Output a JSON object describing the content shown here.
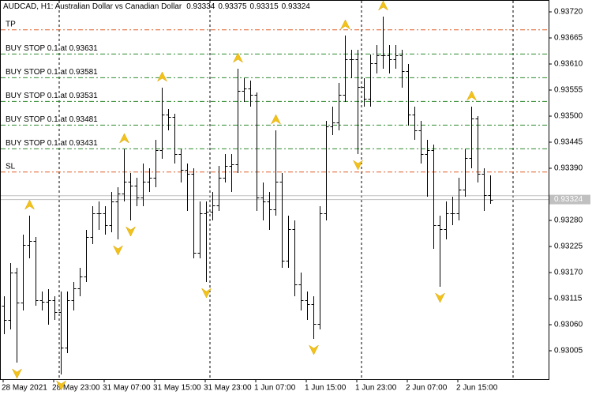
{
  "chart_data": {
    "type": "ohlc",
    "symbol": "AUDCAD, H1:  Australian Dollar vs Canadian Dollar",
    "bar_color": "#000000",
    "fractal_color": "#f2c21b",
    "ylim": [
      0.92945,
      0.93745
    ],
    "yticks": [
      {
        "value": 0.9372,
        "label": "0.93720"
      },
      0.93665,
      {
        "value": 0.9361,
        "label": "0.93610"
      },
      0.93555,
      {
        "value": 0.935,
        "label": "0.93500"
      },
      0.93445,
      {
        "value": 0.9339,
        "label": "0.93390"
      },
      {
        "value": 0.9328,
        "label": "0.93280"
      },
      0.93225,
      {
        "value": 0.9317,
        "label": "0.93170"
      },
      0.93115,
      {
        "value": 0.9306,
        "label": "0.93060"
      },
      0.93005
    ],
    "categories": [
      "28 May 2021",
      null,
      null,
      null,
      null,
      null,
      null,
      null,
      "28 May 23:00",
      null,
      null,
      null,
      null,
      null,
      null,
      null,
      "31 May 07:00",
      null,
      null,
      null,
      null,
      null,
      null,
      null,
      "31 May 15:00",
      null,
      null,
      null,
      null,
      null,
      null,
      null,
      "31 May 23:00",
      null,
      null,
      null,
      null,
      null,
      null,
      null,
      "1 Jun 07:00",
      null,
      null,
      null,
      null,
      null,
      null,
      null,
      "1 Jun 15:00",
      null,
      null,
      null,
      null,
      null,
      null,
      null,
      "1 Jun 23:00",
      null,
      null,
      null,
      null,
      null,
      null,
      null,
      "2 Jun 07:00",
      null,
      null,
      null,
      null,
      null,
      null,
      null,
      "2 Jun 15:00",
      null,
      null,
      null,
      null,
      null
    ],
    "open": [
      0.931,
      0.9307,
      0.9317,
      0.93107,
      0.93228,
      0.93237,
      0.93112,
      0.93108,
      0.93112,
      0.93087,
      0.93012,
      0.93112,
      0.93137,
      0.93162,
      0.93245,
      0.93295,
      0.93295,
      0.9327,
      0.9332,
      0.93337,
      0.93362,
      0.93353,
      0.93328,
      0.93362,
      0.9337,
      0.93428,
      0.93503,
      0.93498,
      0.9342,
      0.93387,
      0.93378,
      0.93212,
      0.93295,
      0.93298,
      0.93312,
      0.9337,
      0.93395,
      0.93398,
      0.93553,
      0.93558,
      0.93545,
      0.93328,
      0.9332,
      0.93303,
      0.93362,
      0.93195,
      0.93262,
      0.93145,
      0.93112,
      0.93103,
      0.93062,
      0.93295,
      0.93478,
      0.93487,
      0.93545,
      0.9362,
      0.9362,
      0.93562,
      0.93537,
      0.93612,
      0.93628,
      0.93628,
      0.9362,
      0.93628,
      0.93595,
      0.93503,
      0.9347,
      0.9342,
      0.93428,
      0.9327,
      0.93262,
      0.93295,
      0.93295,
      0.93345,
      0.93412,
      0.93495,
      0.93378,
      0.93334
    ],
    "high": [
      0.9312,
      0.9319,
      0.9318,
      0.9325,
      0.9329,
      0.93245,
      0.9313,
      0.93135,
      0.9312,
      0.9313,
      0.9313,
      0.9315,
      0.9318,
      0.9326,
      0.9331,
      0.9332,
      0.9331,
      0.9334,
      0.9335,
      0.9343,
      0.9338,
      0.9337,
      0.934,
      0.9339,
      0.9345,
      0.9356,
      0.93515,
      0.93505,
      0.9343,
      0.934,
      0.9339,
      0.9332,
      0.9332,
      0.9334,
      0.93395,
      0.9342,
      0.9342,
      0.936,
      0.9358,
      0.93575,
      0.9355,
      0.9336,
      0.9334,
      0.9347,
      0.9338,
      0.9329,
      0.9328,
      0.9317,
      0.9313,
      0.9312,
      0.9331,
      0.9349,
      0.9352,
      0.9357,
      0.9367,
      0.9364,
      0.9364,
      0.9358,
      0.9363,
      0.9365,
      0.9371,
      0.9365,
      0.9365,
      0.9364,
      0.9361,
      0.9352,
      0.9349,
      0.9345,
      0.9344,
      0.9329,
      0.9332,
      0.9333,
      0.9337,
      0.9343,
      0.9352,
      0.935,
      0.9339,
      0.93375
    ],
    "low": [
      0.9304,
      0.9305,
      0.9298,
      0.9309,
      0.932,
      0.931,
      0.9309,
      0.9306,
      0.9307,
      0.92955,
      0.93,
      0.9309,
      0.9312,
      0.9315,
      0.9323,
      0.9326,
      0.9325,
      0.93255,
      0.9324,
      0.9332,
      0.9328,
      0.9331,
      0.9331,
      0.9334,
      0.9335,
      0.9341,
      0.9347,
      0.934,
      0.9336,
      0.933,
      0.932,
      0.932,
      0.9315,
      0.9328,
      0.933,
      0.9336,
      0.9334,
      0.9338,
      0.9353,
      0.9352,
      0.933,
      0.9328,
      0.9326,
      0.9329,
      0.9318,
      0.9318,
      0.9312,
      0.9309,
      0.9307,
      0.9303,
      0.9305,
      0.9328,
      0.9346,
      0.9347,
      0.9353,
      0.9358,
      0.9342,
      0.9352,
      0.9352,
      0.9359,
      0.936,
      0.9359,
      0.936,
      0.9356,
      0.9348,
      0.9345,
      0.934,
      0.9333,
      0.9322,
      0.9314,
      0.9324,
      0.9327,
      0.9328,
      0.9333,
      0.9339,
      0.9336,
      0.933,
      0.93315
    ],
    "close": [
      0.9307,
      0.9317,
      0.93107,
      0.93228,
      0.93237,
      0.93112,
      0.93108,
      0.93112,
      0.93087,
      0.93012,
      0.93112,
      0.93137,
      0.93162,
      0.93245,
      0.93295,
      0.93295,
      0.9327,
      0.9332,
      0.93337,
      0.93362,
      0.93353,
      0.93328,
      0.93362,
      0.9337,
      0.93428,
      0.93503,
      0.93498,
      0.9342,
      0.93387,
      0.93378,
      0.93212,
      0.93295,
      0.93298,
      0.93312,
      0.9337,
      0.93395,
      0.93398,
      0.93553,
      0.93558,
      0.93545,
      0.93328,
      0.9332,
      0.93303,
      0.93362,
      0.93195,
      0.93262,
      0.93145,
      0.93112,
      0.93103,
      0.93062,
      0.93295,
      0.93478,
      0.93487,
      0.93545,
      0.9362,
      0.9362,
      0.93562,
      0.93537,
      0.93612,
      0.93628,
      0.93628,
      0.9362,
      0.93628,
      0.93595,
      0.93503,
      0.9347,
      0.9342,
      0.93428,
      0.9327,
      0.93262,
      0.93295,
      0.93295,
      0.93345,
      0.93412,
      0.93495,
      0.93378,
      0.93334,
      0.93324
    ],
    "fractals_up": [
      null,
      null,
      null,
      null,
      0.9329,
      null,
      null,
      null,
      null,
      null,
      null,
      null,
      null,
      null,
      null,
      null,
      null,
      null,
      null,
      0.9343,
      null,
      null,
      null,
      null,
      null,
      0.9356,
      null,
      null,
      null,
      null,
      null,
      null,
      null,
      null,
      null,
      null,
      null,
      0.936,
      null,
      null,
      null,
      null,
      null,
      0.9347,
      null,
      null,
      null,
      null,
      null,
      null,
      null,
      null,
      null,
      null,
      0.9367,
      null,
      null,
      null,
      null,
      null,
      0.9371,
      null,
      null,
      null,
      null,
      null,
      null,
      null,
      null,
      null,
      null,
      null,
      null,
      null,
      0.9352,
      null,
      null,
      null
    ],
    "fractals_down": [
      null,
      null,
      0.9298,
      null,
      null,
      null,
      null,
      null,
      null,
      0.92955,
      null,
      null,
      null,
      null,
      null,
      null,
      null,
      null,
      0.9324,
      null,
      0.9328,
      null,
      null,
      null,
      null,
      null,
      null,
      null,
      null,
      null,
      null,
      null,
      0.9315,
      null,
      null,
      null,
      null,
      null,
      null,
      null,
      null,
      null,
      null,
      null,
      null,
      null,
      null,
      null,
      null,
      0.9303,
      null,
      null,
      null,
      null,
      null,
      null,
      0.9342,
      null,
      null,
      null,
      null,
      null,
      null,
      null,
      null,
      null,
      null,
      null,
      null,
      0.9314,
      null,
      null,
      null,
      null,
      null,
      null,
      null,
      null
    ],
    "ask": 0.93332,
    "price_line_color": "#c0c0c0",
    "levels": [
      {
        "label": "TP",
        "value": 0.93682,
        "color": "#e0602a"
      },
      {
        "label": "BUY STOP 0.1 at 0.93631",
        "value": 0.93631,
        "color": "#2e8b2e"
      },
      {
        "label": "BUY STOP 0.1 at 0.93581",
        "value": 0.93581,
        "color": "#2e8b2e"
      },
      {
        "label": "BUY STOP 0.1 at 0.93531",
        "value": 0.93531,
        "color": "#2e8b2e"
      },
      {
        "label": "BUY STOP 0.1 at 0.93481",
        "value": 0.93481,
        "color": "#2e8b2e"
      },
      {
        "label": "BUY STOP 0.1 at 0.93431",
        "value": 0.93431,
        "color": "#2e8b2e"
      },
      {
        "label": "SL",
        "value": 0.93382,
        "color": "#e0602a"
      }
    ]
  }
}
